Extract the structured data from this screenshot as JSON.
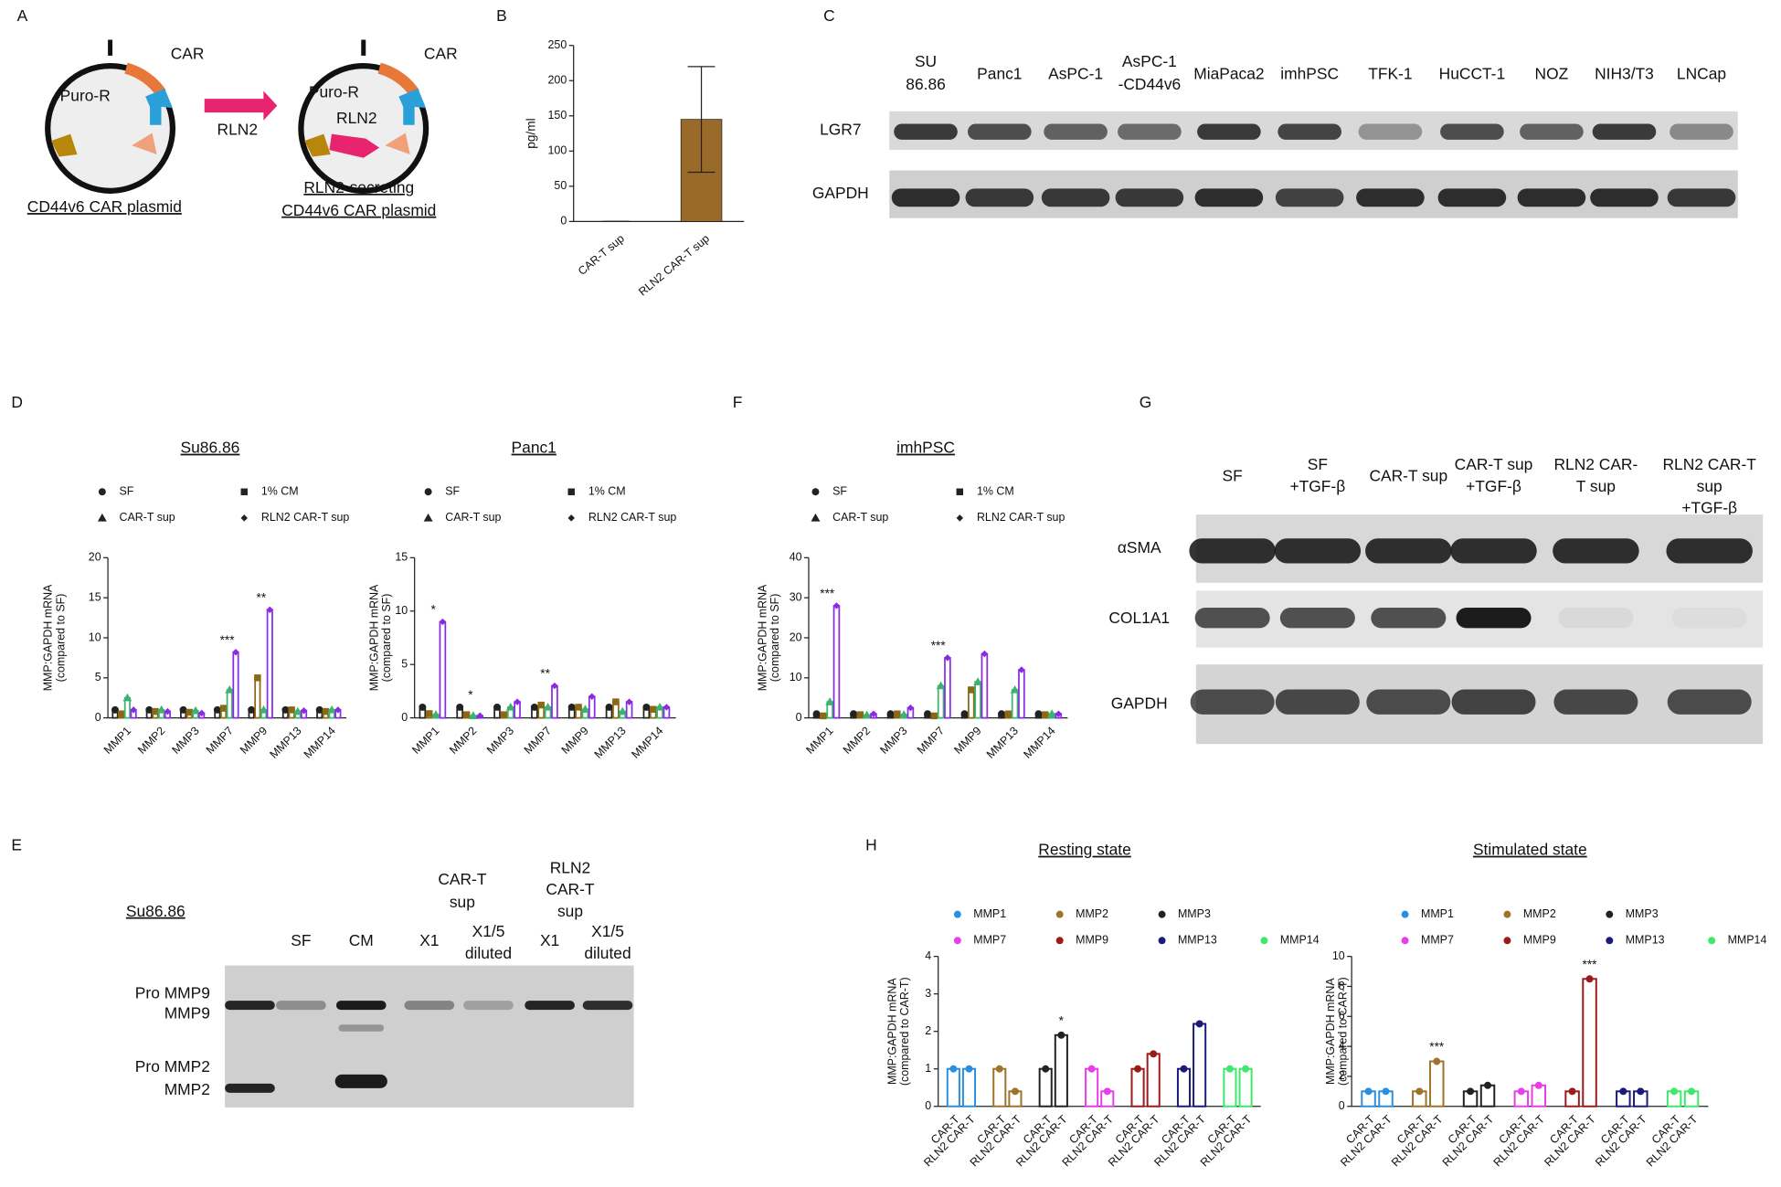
{
  "panel_labels": [
    "A",
    "B",
    "C",
    "D",
    "E",
    "F",
    "G",
    "H"
  ],
  "panel_a": {
    "car": "CAR",
    "puro": "Puro-R",
    "arrow": "RLN2",
    "rln2": "RLN2",
    "left_caption": "CD44v6 CAR plasmid",
    "right_caption": [
      "RLN2-secreting",
      "CD44v6 CAR plasmid"
    ]
  },
  "panel_c": {
    "lanes": [
      [
        "SU",
        "86.86"
      ],
      [
        "Panc1"
      ],
      [
        "AsPC-1"
      ],
      [
        "AsPC-1",
        "-CD44v6"
      ],
      [
        "MiaPaca2"
      ],
      [
        "imhPSC"
      ],
      [
        "TFK-1"
      ],
      [
        "HuCCT-1"
      ],
      [
        "NOZ"
      ],
      [
        "NIH3/T3"
      ],
      [
        "LNCap"
      ]
    ],
    "rows": [
      "LGR7",
      "GAPDH"
    ]
  },
  "panel_e": {
    "title": "Su86.86",
    "groups": [
      [
        "CAR-T",
        "sup"
      ],
      [
        "RLN2",
        "CAR-T",
        "sup"
      ]
    ],
    "lanes": [
      [
        "SF"
      ],
      [
        "CM"
      ],
      [
        "X1"
      ],
      [
        "X1/5",
        "diluted"
      ],
      [
        "X1"
      ],
      [
        "X1/5",
        "diluted"
      ]
    ],
    "rows": [
      "Pro MMP9",
      "MMP9",
      "Pro MMP2",
      "MMP2"
    ]
  },
  "panel_g": {
    "lanes": [
      [
        "SF"
      ],
      [
        "SF",
        "+TGF-β"
      ],
      [
        "CAR-T sup"
      ],
      [
        "CAR-T sup",
        "+TGF-β"
      ],
      [
        "RLN2 CAR-",
        "T sup"
      ],
      [
        "RLN2 CAR-T",
        "sup",
        "+TGF-β"
      ]
    ],
    "rows": [
      "αSMA",
      "COL1A1",
      "GAPDH"
    ]
  },
  "chart_data": [
    {
      "type": "bar",
      "y_label": "pg/ml",
      "categories": [
        "CAR-T sup",
        "RLN2 CAR-T sup"
      ],
      "values": [
        0,
        145
      ],
      "errors": [
        0,
        75
      ],
      "color": "#9a6a2a",
      "ylim": [
        0,
        250
      ],
      "yticks": [
        0,
        50,
        100,
        150,
        200,
        250
      ]
    },
    {
      "type": "grouped_bar",
      "title": "Su86.86",
      "y_label": [
        "MMP:GAPDH mRNA",
        "(compared to SF)"
      ],
      "categories": [
        "MMP1",
        "MMP2",
        "MMP3",
        "MMP7",
        "MMP9",
        "MMP13",
        "MMP14"
      ],
      "series": [
        {
          "name": "SF",
          "marker": "circle",
          "color": "#222222",
          "values": [
            1,
            1,
            1,
            1,
            1,
            1,
            1
          ]
        },
        {
          "name": "1% CM",
          "marker": "square",
          "color": "#8b6914",
          "values": [
            0.5,
            0.8,
            0.7,
            1.2,
            5,
            1,
            0.8
          ]
        },
        {
          "name": "CAR-T sup",
          "marker": "triangle",
          "color": "#3cb371",
          "values": [
            2.5,
            1,
            0.9,
            3.5,
            1,
            0.8,
            1
          ]
        },
        {
          "name": "RLN2 CAR-T sup",
          "marker": "diamond",
          "color": "#8a2be2",
          "values": [
            1,
            0.8,
            0.6,
            8.2,
            13.5,
            0.9,
            1
          ]
        }
      ],
      "significance": [
        null,
        null,
        null,
        "***",
        "**",
        null,
        null
      ],
      "ylim": [
        0,
        20
      ],
      "yticks": [
        0,
        5,
        10,
        15,
        20
      ]
    },
    {
      "type": "grouped_bar",
      "title": "Panc1",
      "y_label": [
        "MMP:GAPDH mRNA",
        "(compared to SF)"
      ],
      "categories": [
        "MMP1",
        "MMP2",
        "MMP3",
        "MMP7",
        "MMP9",
        "MMP13",
        "MMP14"
      ],
      "series": [
        {
          "name": "SF",
          "marker": "circle",
          "color": "#222222",
          "values": [
            1,
            1,
            1,
            1,
            1,
            1,
            1
          ]
        },
        {
          "name": "1% CM",
          "marker": "square",
          "color": "#8b6914",
          "values": [
            0.4,
            0.3,
            0.3,
            1.2,
            1,
            1.5,
            0.8
          ]
        },
        {
          "name": "CAR-T sup",
          "marker": "triangle",
          "color": "#3cb371",
          "values": [
            0.3,
            0.2,
            1,
            1,
            0.8,
            0.6,
            1
          ]
        },
        {
          "name": "RLN2 CAR-T sup",
          "marker": "diamond",
          "color": "#8a2be2",
          "values": [
            9,
            0.2,
            1.5,
            3,
            2,
            1.5,
            1
          ]
        }
      ],
      "significance": [
        "*",
        "*",
        null,
        "**",
        null,
        null,
        null
      ],
      "ylim": [
        0,
        15
      ],
      "yticks": [
        0,
        5,
        10,
        15
      ]
    },
    {
      "type": "grouped_bar",
      "title": "imhPSC",
      "y_label": [
        "MMP:GAPDH mRNA",
        "(compared to SF)"
      ],
      "categories": [
        "MMP1",
        "MMP2",
        "MMP3",
        "MMP7",
        "MMP9",
        "MMP13",
        "MMP14"
      ],
      "series": [
        {
          "name": "SF",
          "marker": "circle",
          "color": "#222222",
          "values": [
            1,
            1,
            1,
            1,
            1,
            1,
            1
          ]
        },
        {
          "name": "1% CM",
          "marker": "square",
          "color": "#8b6914",
          "values": [
            0.5,
            0.8,
            1,
            0.5,
            7,
            1,
            0.8
          ]
        },
        {
          "name": "CAR-T sup",
          "marker": "triangle",
          "color": "#3cb371",
          "values": [
            4,
            0.7,
            0.8,
            8,
            9,
            7,
            1
          ]
        },
        {
          "name": "RLN2 CAR-T sup",
          "marker": "diamond",
          "color": "#8a2be2",
          "values": [
            28,
            1,
            2.5,
            15,
            16,
            12,
            1
          ]
        }
      ],
      "significance": [
        "***",
        null,
        null,
        "***",
        null,
        null,
        null
      ],
      "ylim": [
        0,
        40
      ],
      "yticks": [
        0,
        10,
        20,
        30,
        40
      ]
    },
    {
      "type": "paired_bar",
      "title": "Resting state",
      "y_label": [
        "MMP:GAPDH mRNA",
        "(compared to CAR-T)"
      ],
      "categories": [
        "CAR-T",
        "RLN2 CAR-T"
      ],
      "series": [
        {
          "name": "MMP1",
          "color": "#2a8fe0",
          "values": [
            1,
            1
          ]
        },
        {
          "name": "MMP2",
          "color": "#a0732a",
          "values": [
            1,
            0.4
          ]
        },
        {
          "name": "MMP3",
          "color": "#222222",
          "values": [
            1,
            1.9
          ],
          "significance": "*"
        },
        {
          "name": "MMP7",
          "color": "#e83ee8",
          "values": [
            1,
            0.4
          ]
        },
        {
          "name": "MMP9",
          "color": "#9b1b1b",
          "values": [
            1,
            1.4
          ]
        },
        {
          "name": "MMP13",
          "color": "#1a1a7a",
          "values": [
            1,
            2.2
          ]
        },
        {
          "name": "MMP14",
          "color": "#3ee86b",
          "values": [
            1,
            1
          ]
        }
      ],
      "ylim": [
        0,
        4
      ],
      "yticks": [
        0,
        1,
        2,
        3,
        4
      ]
    },
    {
      "type": "paired_bar",
      "title": "Stimulated state",
      "y_label": [
        "MMP:GAPDH mRNA",
        "(compared to CAR-T)"
      ],
      "categories": [
        "CAR-T",
        "RLN2 CAR-T"
      ],
      "series": [
        {
          "name": "MMP1",
          "color": "#2a8fe0",
          "values": [
            1,
            1
          ]
        },
        {
          "name": "MMP2",
          "color": "#a0732a",
          "values": [
            1,
            3
          ],
          "significance": "***"
        },
        {
          "name": "MMP3",
          "color": "#222222",
          "values": [
            1,
            1.4
          ]
        },
        {
          "name": "MMP7",
          "color": "#e83ee8",
          "values": [
            1,
            1.4
          ]
        },
        {
          "name": "MMP9",
          "color": "#9b1b1b",
          "values": [
            1,
            8.5
          ],
          "significance": "***"
        },
        {
          "name": "MMP13",
          "color": "#1a1a7a",
          "values": [
            1,
            1
          ]
        },
        {
          "name": "MMP14",
          "color": "#3ee86b",
          "values": [
            1,
            1
          ]
        }
      ],
      "ylim": [
        0,
        10
      ],
      "yticks": [
        0,
        2,
        4,
        6,
        8,
        10
      ]
    }
  ]
}
